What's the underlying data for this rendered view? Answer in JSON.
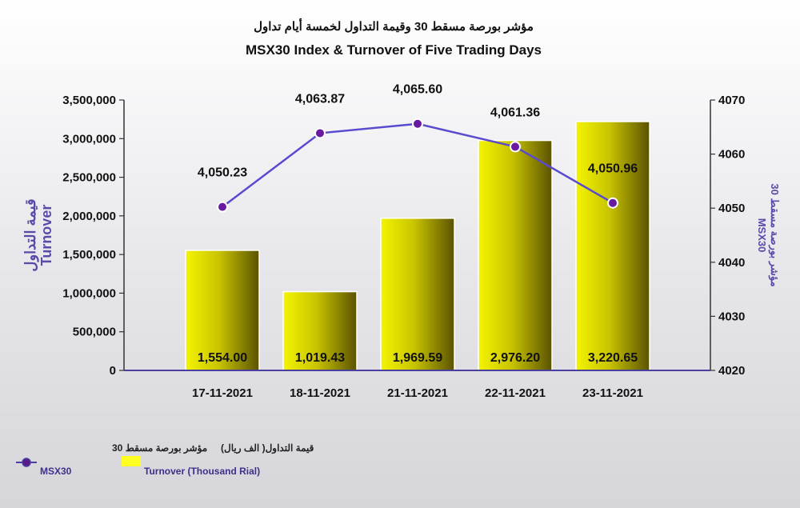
{
  "chart_data": {
    "type": "bar",
    "title_ar": "مؤشر بورصة مسقط 30 وقيمة التداول لخمسة أيام تداول",
    "title": "MSX30 Index & Turnover of Five Trading Days",
    "categories": [
      "17-11-2021",
      "18-11-2021",
      "21-11-2021",
      "22-11-2021",
      "23-11-2021"
    ],
    "series": [
      {
        "name_ar": "قيمة التداول( الف ريال)",
        "name": "Turnover (Thousand Rial)",
        "type": "bar",
        "axis": "left",
        "values": [
          1554.0,
          1019.43,
          1969.59,
          2976.2,
          3220.65
        ],
        "value_labels": [
          "1,554.00",
          "1,019.43",
          "1,969.59",
          "2,976.20",
          "3,220.65"
        ],
        "color": "#f0f000"
      },
      {
        "name_ar": "مؤشر بورصة مسقط 30",
        "name": "MSX30",
        "type": "line",
        "axis": "right",
        "values": [
          4050.23,
          4063.87,
          4065.6,
          4061.36,
          4050.96
        ],
        "value_labels": [
          "4,050.23",
          "4,063.87",
          "4,065.60",
          "4,061.36",
          "4,050.96"
        ],
        "color": "#5a4ad0"
      }
    ],
    "y_left": {
      "label_ar": "قيمة التداول",
      "label": "Turnover",
      "ylim": [
        0,
        3500000
      ],
      "ticks": [
        "0",
        "500,000",
        "1,000,000",
        "1,500,000",
        "2,000,000",
        "2,500,000",
        "3,000,000",
        "3,500,000"
      ]
    },
    "y_right": {
      "label_ar": "مؤشر بورصة مسقط 30",
      "label": "MSX30",
      "ylim": [
        4020,
        4070
      ],
      "ticks": [
        "4020",
        "4030",
        "4040",
        "4050",
        "4060",
        "4070"
      ]
    },
    "grid": false,
    "legend_position": "bottom-left"
  }
}
